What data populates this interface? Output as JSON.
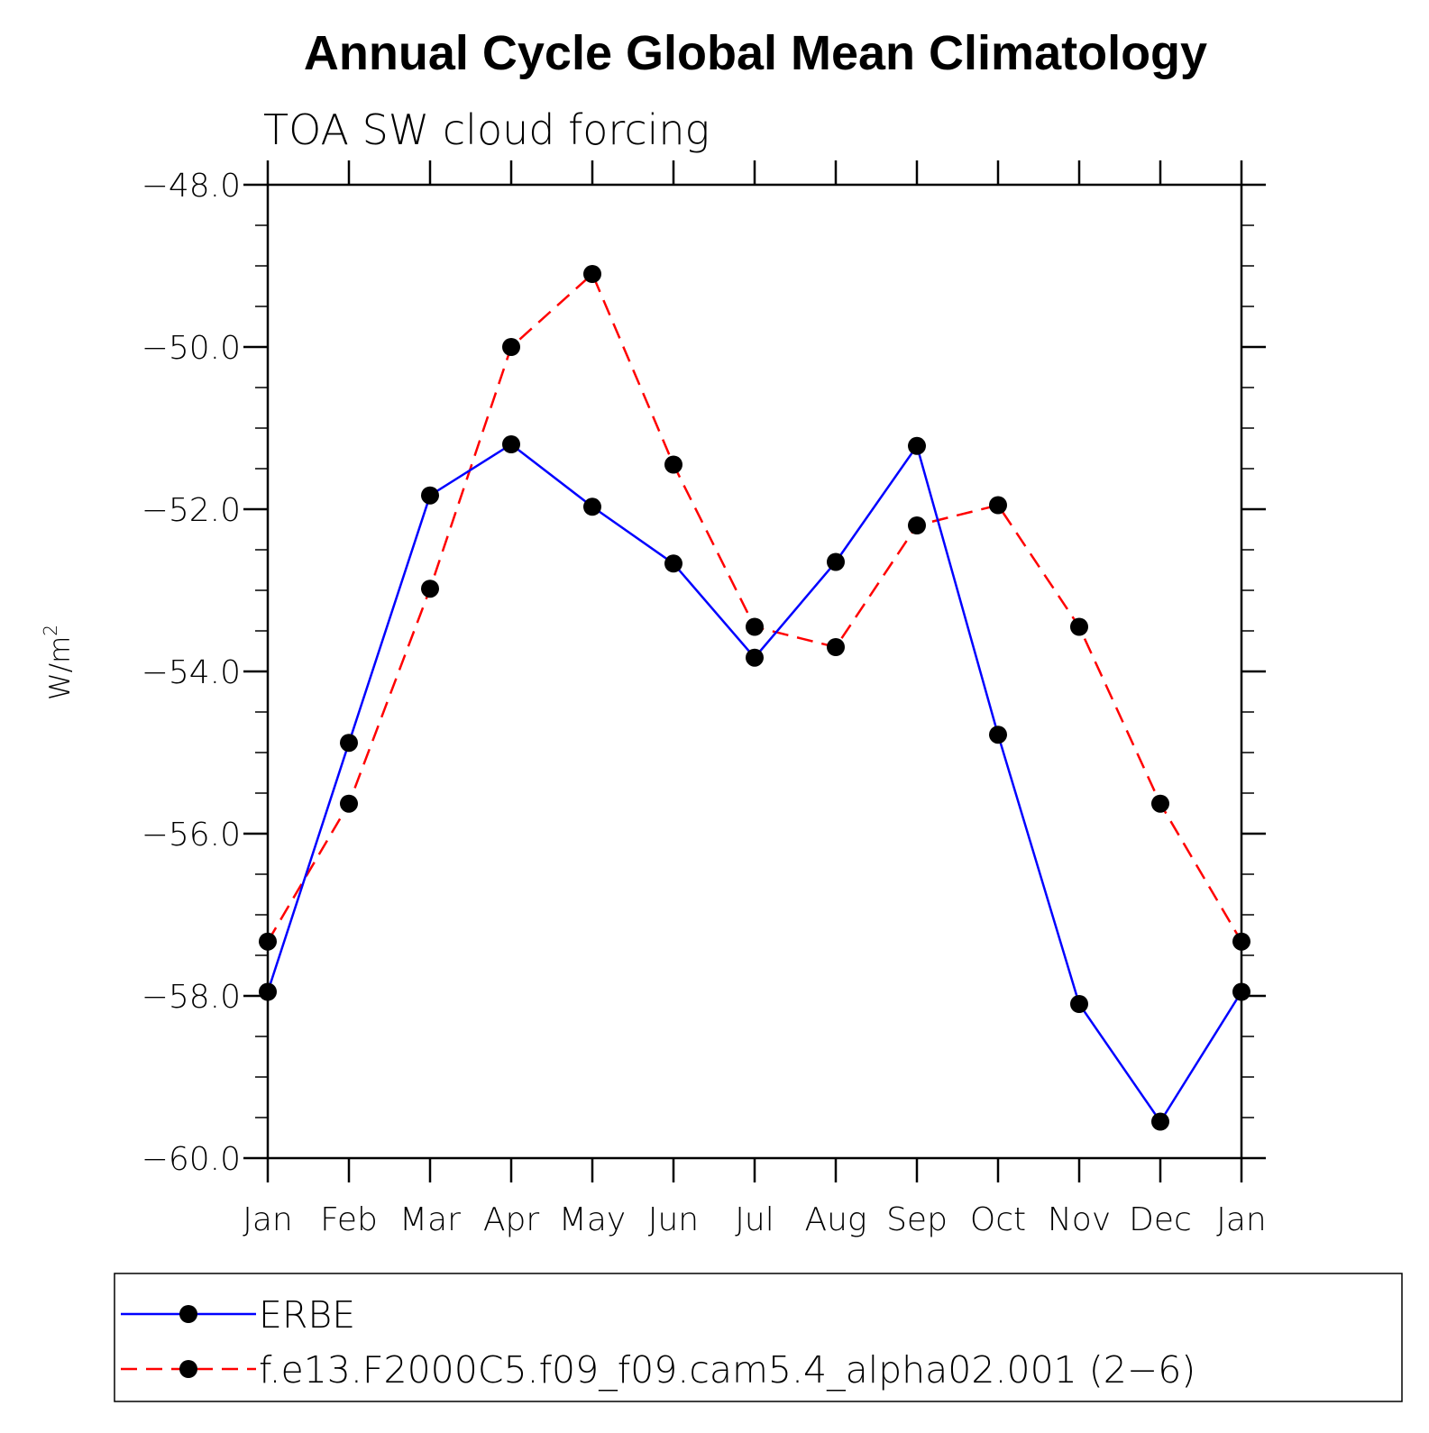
{
  "chart_data": {
    "type": "line",
    "title": "Annual Cycle Global Mean Climatology",
    "subtitle": "TOA SW cloud forcing",
    "ylabel": "W/m",
    "ylabel_superscript": "2",
    "xlabel": "",
    "categories": [
      "Jan",
      "Feb",
      "Mar",
      "Apr",
      "May",
      "Jun",
      "Jul",
      "Aug",
      "Sep",
      "Oct",
      "Nov",
      "Dec",
      "Jan"
    ],
    "ylim": [
      -60.0,
      -48.0
    ],
    "yticks": [
      -48.0,
      -50.0,
      -52.0,
      -54.0,
      -56.0,
      -58.0,
      -60.0
    ],
    "ytick_labels": [
      "−48.0",
      "−50.0",
      "−52.0",
      "−54.0",
      "−56.0",
      "−58.0",
      "−60.0"
    ],
    "grid": false,
    "legend_position": "bottom",
    "series": [
      {
        "name": "ERBE",
        "color": "#0000ff",
        "line_style": "solid",
        "marker": "filled-circle",
        "values": [
          -57.95,
          -54.88,
          -51.83,
          -51.2,
          -51.97,
          -52.67,
          -53.83,
          -52.65,
          -51.22,
          -54.78,
          -58.1,
          -59.55,
          -57.95
        ]
      },
      {
        "name": "f.e13.F2000C5.f09_f09.cam5.4_alpha02.001 (2−6)",
        "color": "#ff0000",
        "line_style": "dashed",
        "marker": "filled-circle",
        "values": [
          -57.33,
          -55.63,
          -52.98,
          -50.0,
          -49.1,
          -51.45,
          -53.45,
          -53.7,
          -52.2,
          -51.95,
          -53.45,
          -55.63,
          -57.33
        ]
      }
    ]
  }
}
